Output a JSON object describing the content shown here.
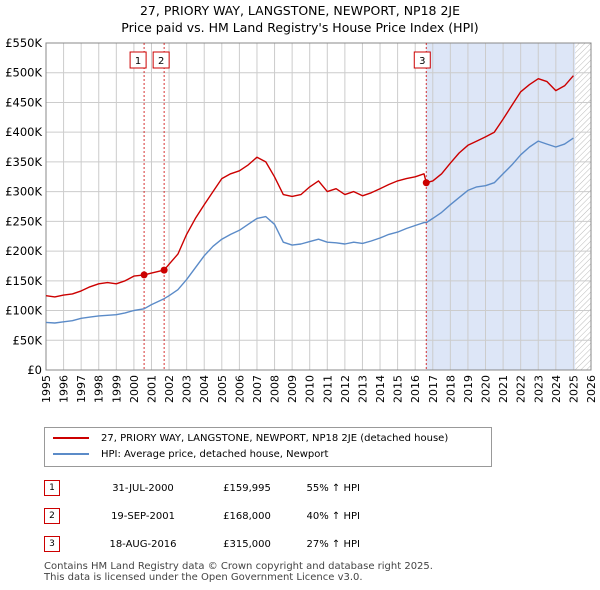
{
  "title_line1": "27, PRIORY WAY, LANGSTONE, NEWPORT, NP18 2JE",
  "title_line2": "Price paid vs. HM Land Registry's House Price Index (HPI)",
  "legend": {
    "property_label": "27, PRIORY WAY, LANGSTONE, NEWPORT, NP18 2JE (detached house)",
    "hpi_label": "HPI: Average price, detached house, Newport"
  },
  "colors": {
    "property": "#cc0000",
    "hpi": "#5b8bc8",
    "shade": "#dde6f7",
    "grid": "#cccccc"
  },
  "sales": [
    {
      "num": "1",
      "date": "31-JUL-2000",
      "price": "£159,995",
      "hpi": "55% ↑ HPI"
    },
    {
      "num": "2",
      "date": "19-SEP-2001",
      "price": "£168,000",
      "hpi": "40% ↑ HPI"
    },
    {
      "num": "3",
      "date": "18-AUG-2016",
      "price": "£315,000",
      "hpi": "27% ↑ HPI"
    }
  ],
  "footer": {
    "line1": "Contains HM Land Registry data © Crown copyright and database right 2025.",
    "line2": "This data is licensed under the Open Government Licence v3.0."
  },
  "chart_data": {
    "type": "line",
    "title": "27, PRIORY WAY, LANGSTONE, NEWPORT, NP18 2JE — Price paid vs. HM Land Registry's House Price Index (HPI)",
    "xlabel": "",
    "ylabel": "",
    "xlim": [
      1995,
      2026
    ],
    "ylim": [
      0,
      550000
    ],
    "x_ticks": [
      1995,
      1996,
      1997,
      1998,
      1999,
      2000,
      2001,
      2002,
      2003,
      2004,
      2005,
      2006,
      2007,
      2008,
      2009,
      2010,
      2011,
      2012,
      2013,
      2014,
      2015,
      2016,
      2017,
      2018,
      2019,
      2020,
      2021,
      2022,
      2023,
      2024,
      2025,
      2026
    ],
    "y_ticks": [
      0,
      50000,
      100000,
      150000,
      200000,
      250000,
      300000,
      350000,
      400000,
      450000,
      500000,
      550000
    ],
    "y_tick_labels": [
      "£0",
      "£50K",
      "£100K",
      "£150K",
      "£200K",
      "£250K",
      "£300K",
      "£350K",
      "£400K",
      "£450K",
      "£500K",
      "£550K"
    ],
    "shaded_ranges": [
      [
        2016.63,
        2025.1
      ]
    ],
    "hatched_after": 2025.1,
    "sale_markers": [
      {
        "label": "1",
        "x": 2000.58,
        "y": 159995
      },
      {
        "label": "2",
        "x": 2001.72,
        "y": 168000
      },
      {
        "label": "3",
        "x": 2016.63,
        "y": 315000
      }
    ],
    "series": [
      {
        "name": "27, PRIORY WAY, LANGSTONE, NEWPORT, NP18 2JE (detached house)",
        "color": "#cc0000",
        "x": [
          1995.0,
          1995.5,
          1996.0,
          1996.5,
          1997.0,
          1997.5,
          1998.0,
          1998.5,
          1999.0,
          1999.5,
          2000.0,
          2000.58,
          2001.0,
          2001.72,
          2002.0,
          2002.5,
          2003.0,
          2003.5,
          2004.0,
          2004.5,
          2005.0,
          2005.5,
          2006.0,
          2006.5,
          2007.0,
          2007.5,
          2008.0,
          2008.5,
          2009.0,
          2009.5,
          2010.0,
          2010.5,
          2011.0,
          2011.5,
          2012.0,
          2012.5,
          2013.0,
          2013.5,
          2014.0,
          2014.5,
          2015.0,
          2015.5,
          2016.0,
          2016.5,
          2016.63,
          2017.0,
          2017.5,
          2018.0,
          2018.5,
          2019.0,
          2019.5,
          2020.0,
          2020.5,
          2021.0,
          2021.5,
          2022.0,
          2022.5,
          2023.0,
          2023.5,
          2024.0,
          2024.5,
          2025.0
        ],
        "y": [
          125000,
          123000,
          126000,
          128000,
          133000,
          140000,
          145000,
          147000,
          145000,
          150000,
          158000,
          159995,
          163000,
          168000,
          178000,
          195000,
          228000,
          255000,
          278000,
          300000,
          322000,
          330000,
          335000,
          345000,
          358000,
          350000,
          325000,
          295000,
          292000,
          295000,
          308000,
          318000,
          300000,
          305000,
          295000,
          300000,
          293000,
          298000,
          305000,
          312000,
          318000,
          322000,
          325000,
          330000,
          315000,
          318000,
          330000,
          348000,
          365000,
          378000,
          385000,
          392000,
          400000,
          422000,
          445000,
          468000,
          480000,
          490000,
          485000,
          470000,
          478000,
          495000
        ]
      },
      {
        "name": "HPI: Average price, detached house, Newport",
        "color": "#5b8bc8",
        "x": [
          1995.0,
          1995.5,
          1996.0,
          1996.5,
          1997.0,
          1997.5,
          1998.0,
          1998.5,
          1999.0,
          1999.5,
          2000.0,
          2000.58,
          2001.0,
          2001.72,
          2002.0,
          2002.5,
          2003.0,
          2003.5,
          2004.0,
          2004.5,
          2005.0,
          2005.5,
          2006.0,
          2006.5,
          2007.0,
          2007.5,
          2008.0,
          2008.5,
          2009.0,
          2009.5,
          2010.0,
          2010.5,
          2011.0,
          2011.5,
          2012.0,
          2012.5,
          2013.0,
          2013.5,
          2014.0,
          2014.5,
          2015.0,
          2015.5,
          2016.0,
          2016.5,
          2016.63,
          2017.0,
          2017.5,
          2018.0,
          2018.5,
          2019.0,
          2019.5,
          2020.0,
          2020.5,
          2021.0,
          2021.5,
          2022.0,
          2022.5,
          2023.0,
          2023.5,
          2024.0,
          2024.5,
          2025.0
        ],
        "y": [
          80000,
          79000,
          81000,
          83000,
          87000,
          89000,
          91000,
          92000,
          93000,
          96000,
          100000,
          103000,
          110000,
          120000,
          125000,
          135000,
          152000,
          172000,
          192000,
          208000,
          220000,
          228000,
          235000,
          245000,
          255000,
          258000,
          245000,
          215000,
          210000,
          212000,
          216000,
          220000,
          215000,
          214000,
          212000,
          215000,
          213000,
          217000,
          222000,
          228000,
          232000,
          238000,
          243000,
          248000,
          248000,
          255000,
          265000,
          278000,
          290000,
          302000,
          308000,
          310000,
          315000,
          330000,
          345000,
          362000,
          375000,
          385000,
          380000,
          375000,
          380000,
          390000
        ]
      }
    ]
  }
}
